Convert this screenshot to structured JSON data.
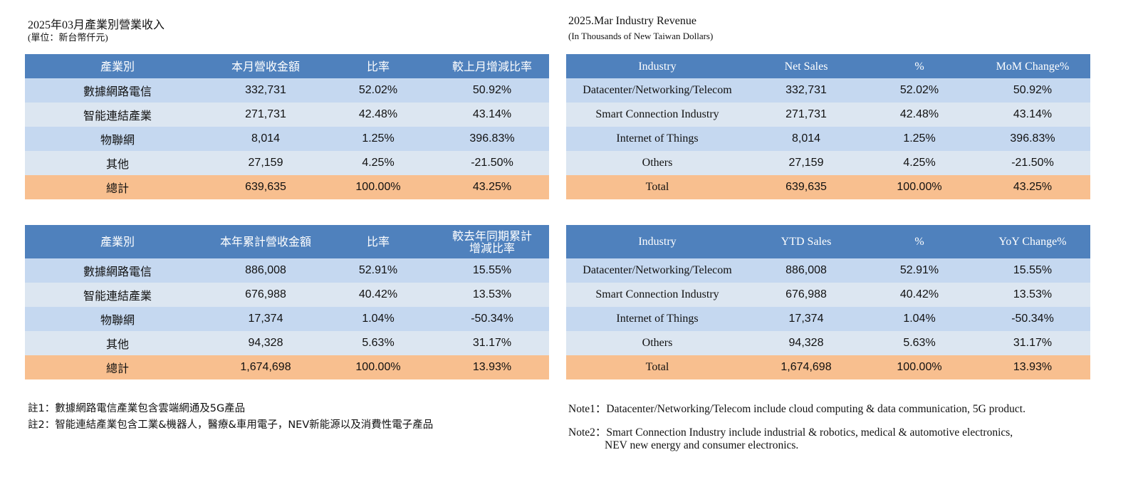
{
  "zh": {
    "title": "2025年03月產業別營業收入",
    "unit": "(單位：新台幣仟元)",
    "monthly": {
      "headers": [
        "產業別",
        "本月營收金額",
        "比率",
        "較上月增減比率"
      ],
      "rows": [
        [
          "數據網路電信",
          "332,731",
          "52.02%",
          "50.92%"
        ],
        [
          "智能連結產業",
          "271,731",
          "42.48%",
          "43.14%"
        ],
        [
          "物聯網",
          "8,014",
          "1.25%",
          "396.83%"
        ],
        [
          "其他",
          "27,159",
          "4.25%",
          "-21.50%"
        ]
      ],
      "total": [
        "總計",
        "639,635",
        "100.00%",
        "43.25%"
      ]
    },
    "ytd": {
      "headers": [
        "產業別",
        "本年累計營收金額",
        "比率",
        "較去年同期累計",
        "增減比率"
      ],
      "rows": [
        [
          "數據網路電信",
          "886,008",
          "52.91%",
          "15.55%"
        ],
        [
          "智能連結產業",
          "676,988",
          "40.42%",
          "13.53%"
        ],
        [
          "物聯網",
          "17,374",
          "1.04%",
          "-50.34%"
        ],
        [
          "其他",
          "94,328",
          "5.63%",
          "31.17%"
        ]
      ],
      "total": [
        "總計",
        "1,674,698",
        "100.00%",
        "13.93%"
      ]
    },
    "notes": [
      "註1：數據網路電信產業包含雲端網通及5G產品",
      "註2：智能連結產業包含工業&機器人，醫療&車用電子，NEV新能源以及消費性電子產品"
    ]
  },
  "en": {
    "title": "2025.Mar Industry Revenue",
    "unit": "(In Thousands of New Taiwan Dollars)",
    "monthly": {
      "headers": [
        "Industry",
        "Net Sales",
        "%",
        "MoM Change%"
      ],
      "rows": [
        [
          "Datacenter/Networking/Telecom",
          "332,731",
          "52.02%",
          "50.92%"
        ],
        [
          "Smart Connection Industry",
          "271,731",
          "42.48%",
          "43.14%"
        ],
        [
          "Internet of Things",
          "8,014",
          "1.25%",
          "396.83%"
        ],
        [
          "Others",
          "27,159",
          "4.25%",
          "-21.50%"
        ]
      ],
      "total": [
        "Total",
        "639,635",
        "100.00%",
        "43.25%"
      ]
    },
    "ytd": {
      "headers": [
        "Industry",
        "YTD Sales",
        "%",
        "YoY Change%"
      ],
      "rows": [
        [
          "Datacenter/Networking/Telecom",
          "886,008",
          "52.91%",
          "15.55%"
        ],
        [
          "Smart Connection Industry",
          "676,988",
          "40.42%",
          "13.53%"
        ],
        [
          "Internet of Things",
          "17,374",
          "1.04%",
          "-50.34%"
        ],
        [
          "Others",
          "94,328",
          "5.63%",
          "31.17%"
        ]
      ],
      "total": [
        "Total",
        "1,674,698",
        "100.00%",
        "13.93%"
      ]
    },
    "notes": [
      "Note1：Datacenter/Networking/Telecom include cloud computing & data communication, 5G product.",
      "Note2：Smart Connection Industry include industrial & robotics, medical & automotive electronics,",
      "NEV new energy and consumer electronics."
    ]
  }
}
